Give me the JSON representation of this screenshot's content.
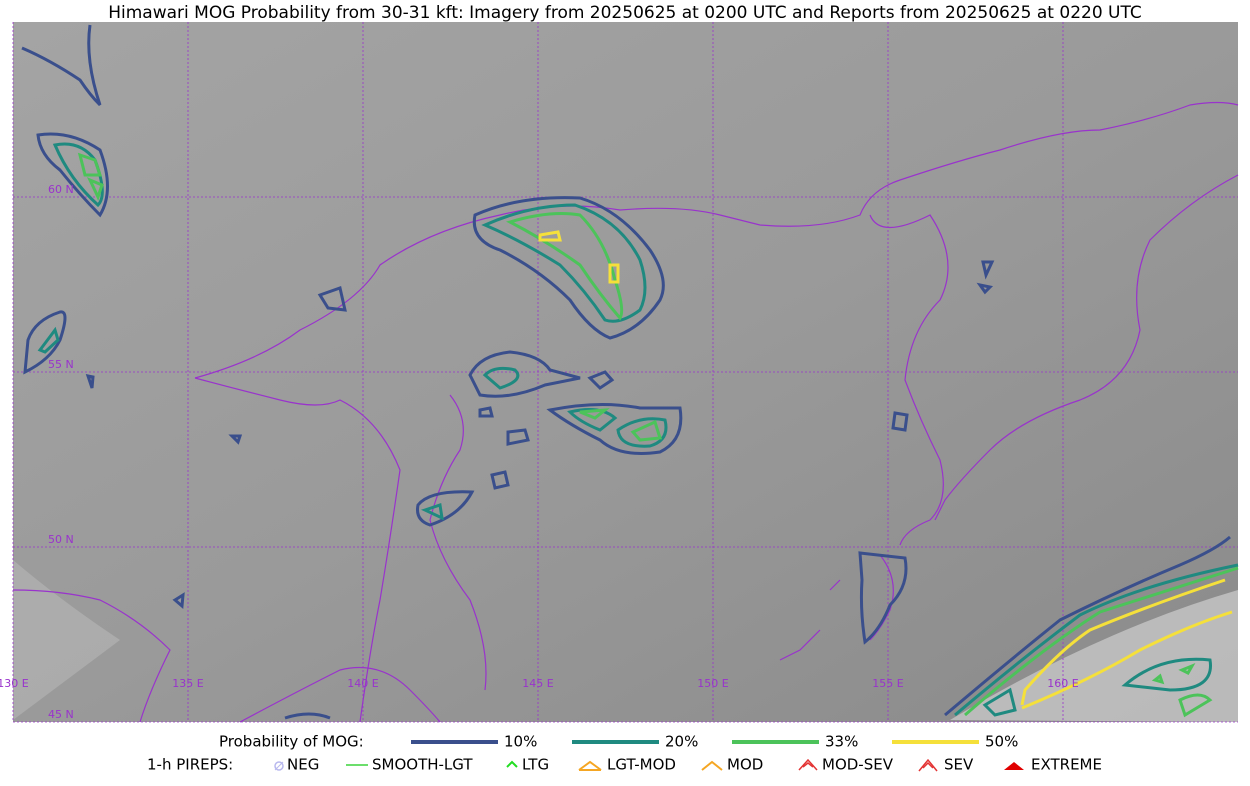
{
  "header": {
    "title": "Himawari MOG Probability from 30-31 kft: Imagery from 20250625 at 0200 UTC and Reports from 20250625 at 0220 UTC"
  },
  "map": {
    "lon_labels": [
      "130 E",
      "135 E",
      "140 E",
      "145 E",
      "150 E",
      "155 E",
      "160 E"
    ],
    "lat_labels": [
      "60 N",
      "55 N",
      "50 N",
      "45 N"
    ],
    "grid_color": "#9933cc",
    "coast_color": "#9933cc"
  },
  "legend": {
    "probability": {
      "title": "Probability of MOG:",
      "items": [
        {
          "label": "10%",
          "color": "#3a4f8c"
        },
        {
          "label": "20%",
          "color": "#1f8a80"
        },
        {
          "label": "33%",
          "color": "#4cc35a"
        },
        {
          "label": "50%",
          "color": "#f5e03a"
        }
      ]
    },
    "pireps": {
      "title": "1-h PIREPS:",
      "items": [
        {
          "label": "NEG",
          "color": "#b8b8ee"
        },
        {
          "label": "SMOOTH-LGT",
          "color": "#3bd43b"
        },
        {
          "label": "LTG",
          "color": "#22dd22"
        },
        {
          "label": "LGT-MOD",
          "color": "#f5a623"
        },
        {
          "label": "MOD",
          "color": "#f5a623"
        },
        {
          "label": "MOD-SEV",
          "color": "#e33333"
        },
        {
          "label": "SEV",
          "color": "#e33333"
        },
        {
          "label": "EXTREME",
          "color": "#e00000"
        }
      ]
    }
  }
}
